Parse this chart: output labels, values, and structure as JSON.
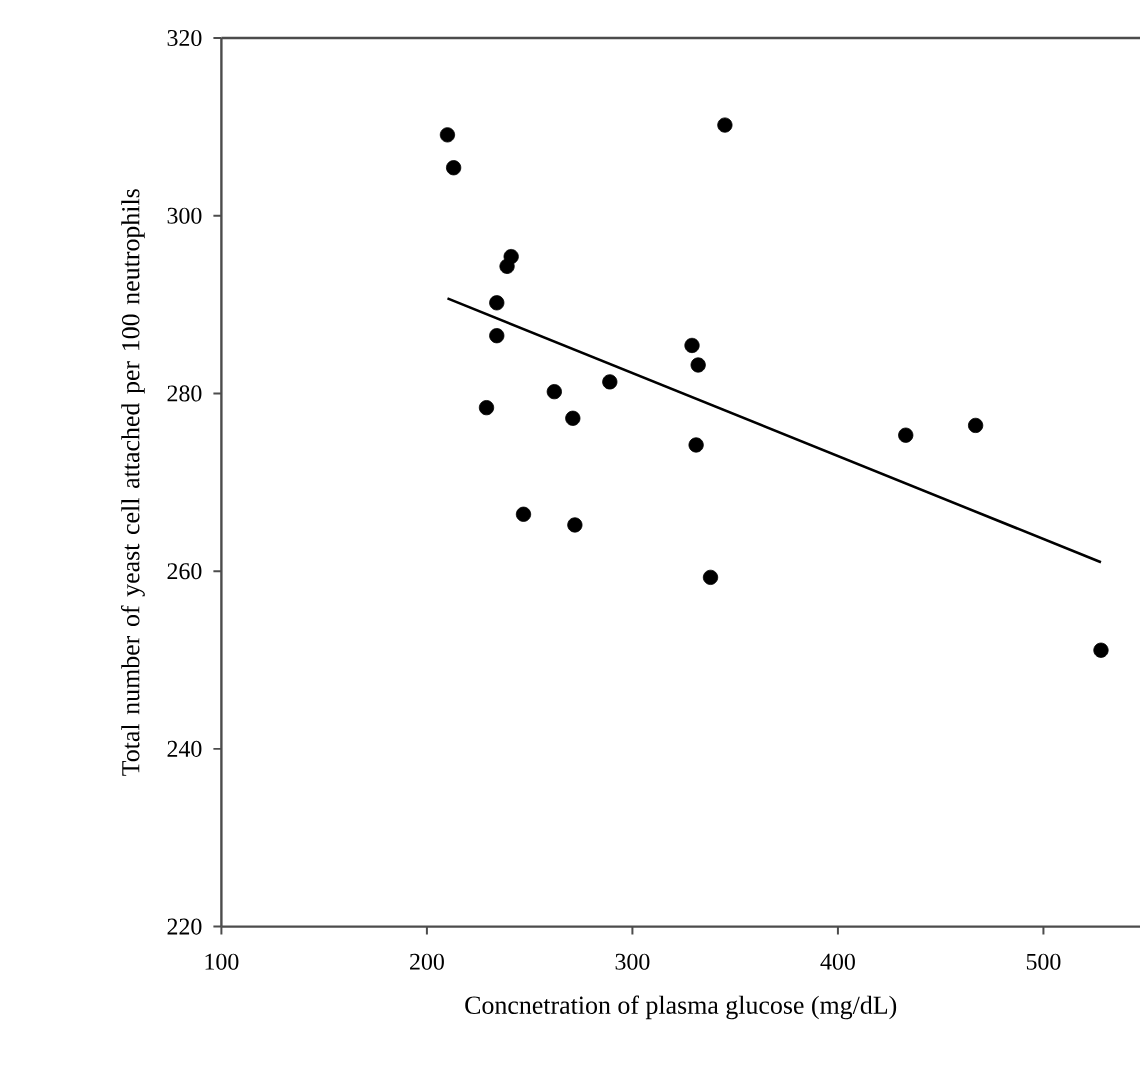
{
  "chart_data": {
    "type": "scatter",
    "xlabel": "Concnetration of plasma glucose (mg/dL)",
    "ylabel": "Total number of yeast cell attached per 100 neutrophils",
    "xlim": [
      100,
      547
    ],
    "ylim": [
      220,
      320
    ],
    "xticks": [
      100,
      200,
      300,
      400,
      500
    ],
    "yticks": [
      220,
      240,
      260,
      280,
      300,
      320
    ],
    "grid": false,
    "series": [
      {
        "marker": "circle",
        "color": "#000000",
        "x": [
          210,
          213,
          345,
          241,
          239,
          234,
          234,
          229,
          262,
          271,
          289,
          329,
          332,
          331,
          247,
          272,
          338,
          433,
          467,
          528
        ],
        "values": [
          309.1,
          305.4,
          310.2,
          295.4,
          294.3,
          290.2,
          286.5,
          278.4,
          280.2,
          277.2,
          281.3,
          285.4,
          283.2,
          274.2,
          266.4,
          265.2,
          259.3,
          275.3,
          276.4,
          251.1
        ]
      },
      {
        "type": "line",
        "marker": "none",
        "color": "#000000",
        "x": [
          210,
          528
        ],
        "values": [
          290.7,
          261.0
        ]
      }
    ]
  }
}
